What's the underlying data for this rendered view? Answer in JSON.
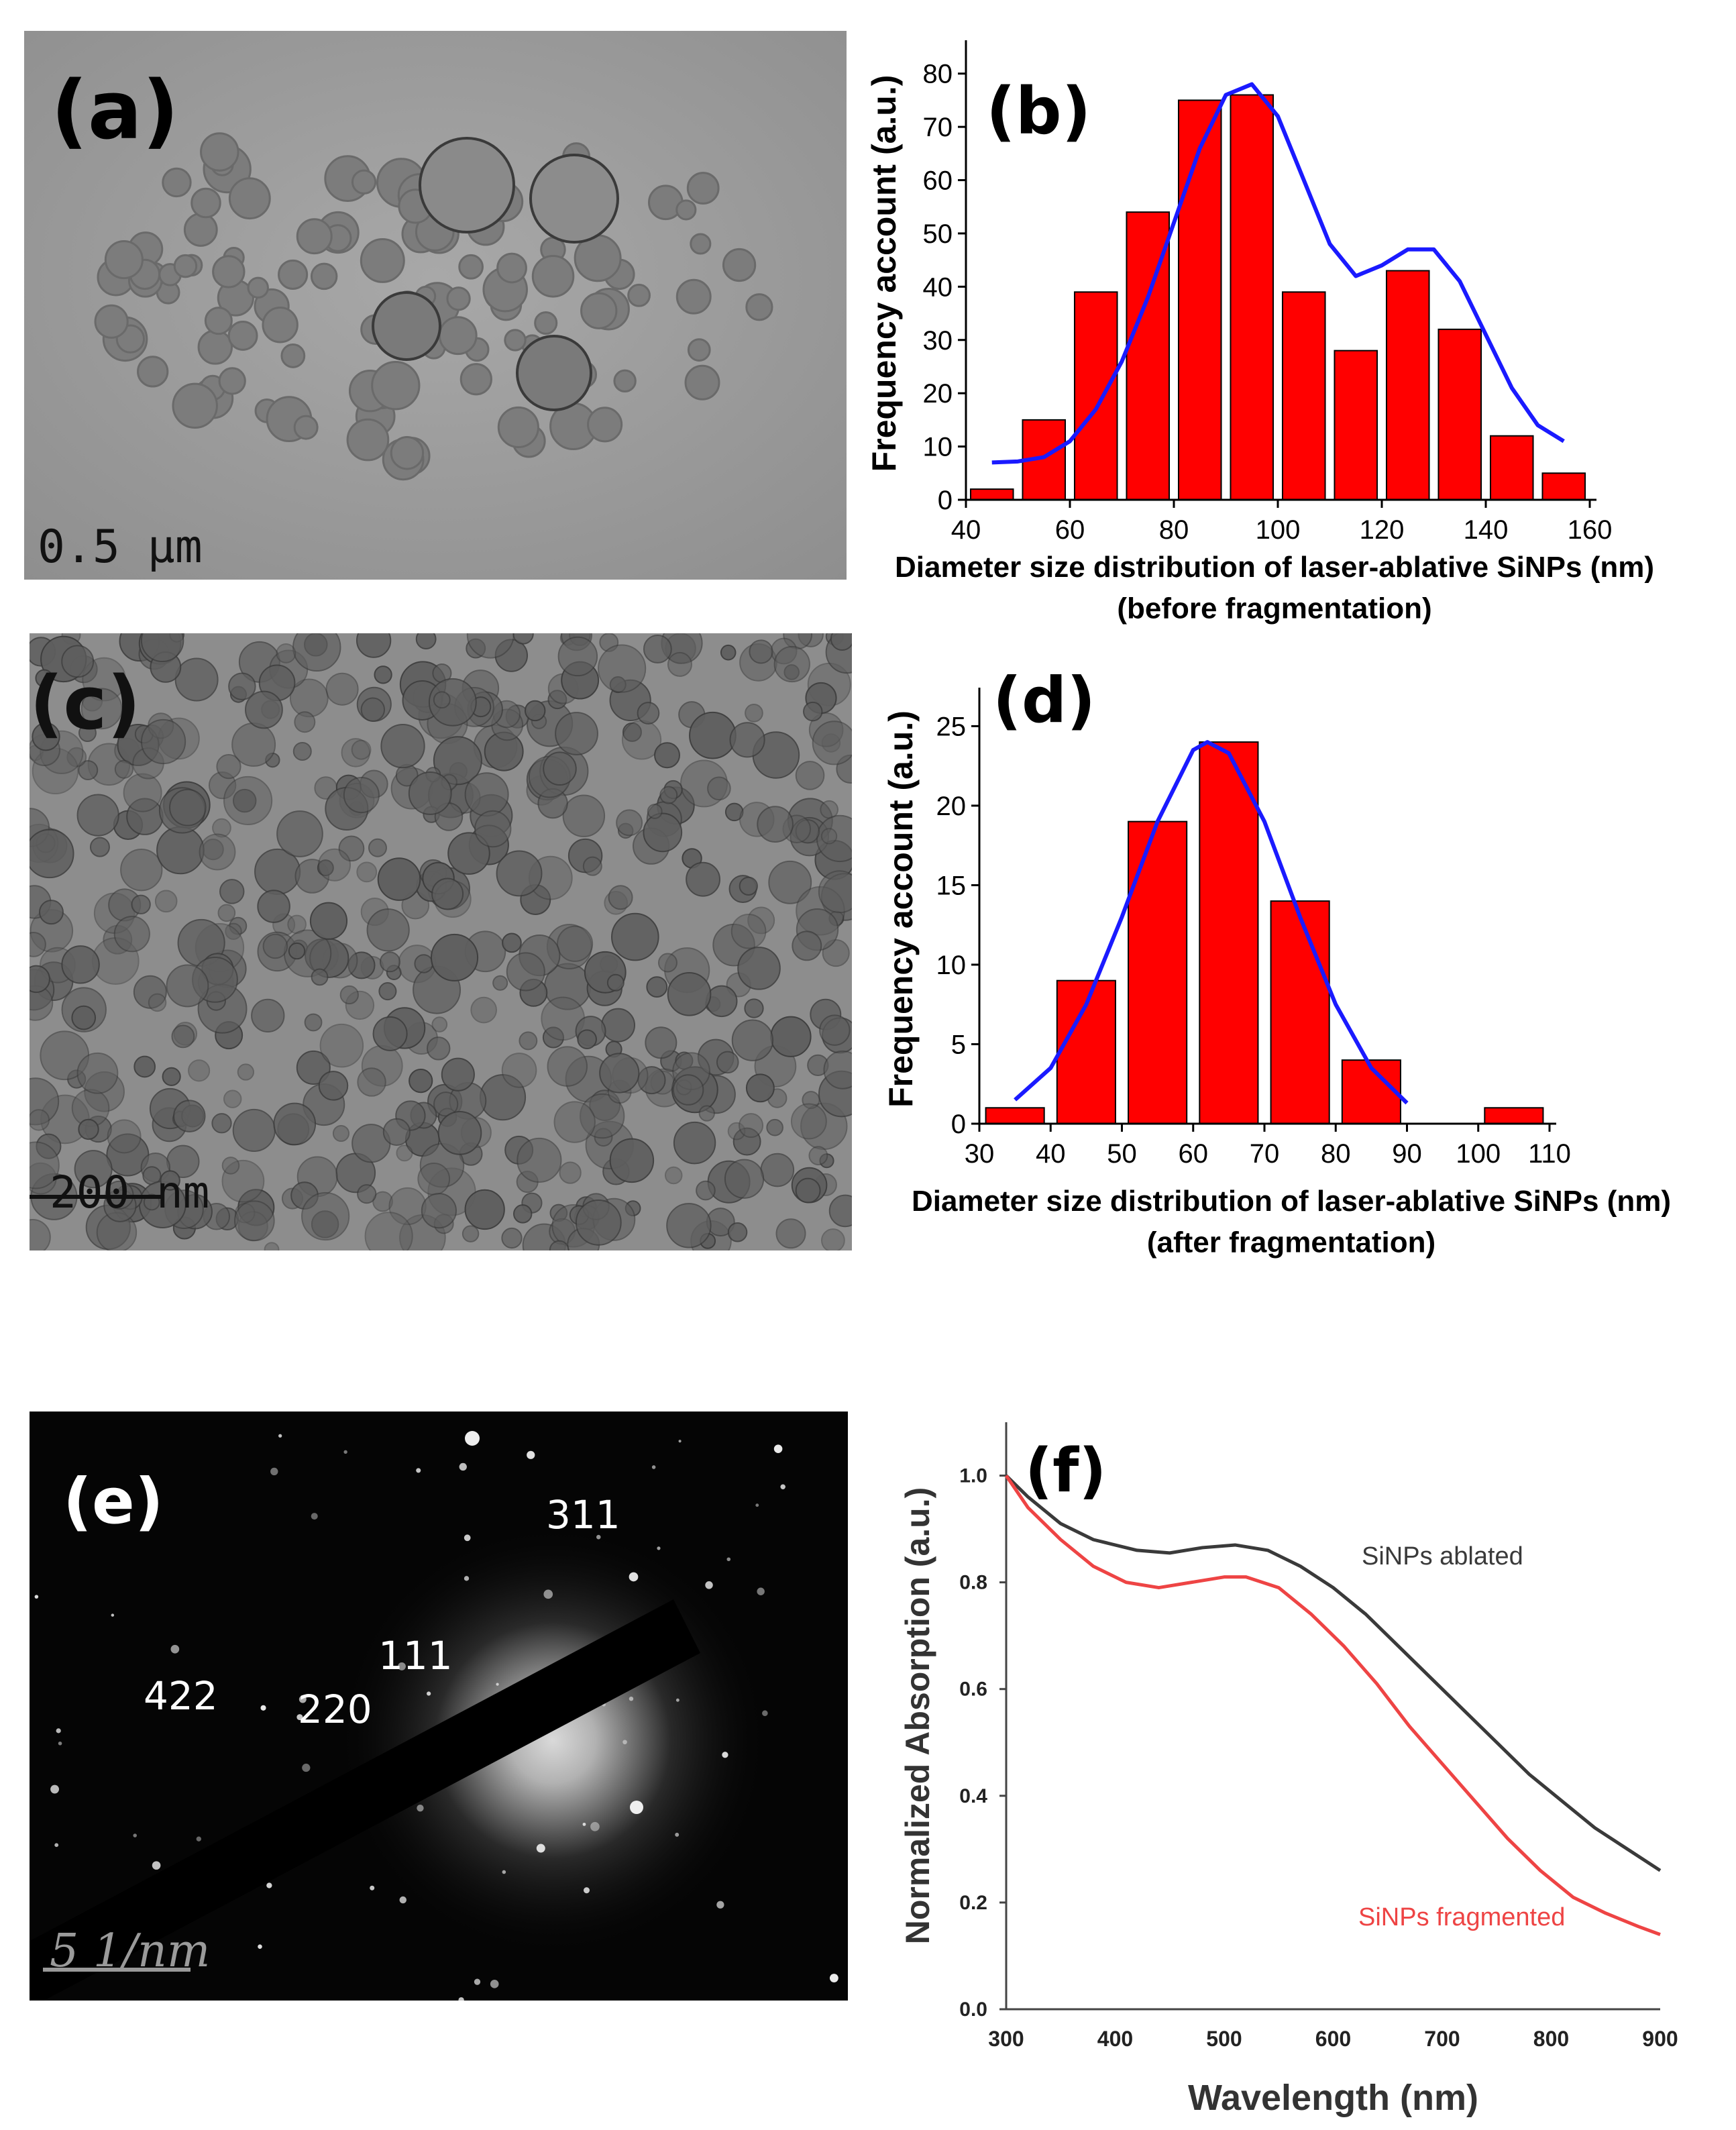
{
  "panels": {
    "a": {
      "label": "(a)",
      "scale_text": "0.5 µm"
    },
    "c": {
      "label": "(c)",
      "scale_text": "200 nm"
    },
    "e": {
      "label": "(e)",
      "scale_text": "5 1/nm",
      "rings": [
        "311",
        "111",
        "422",
        "220"
      ]
    }
  },
  "colors": {
    "bar": "#ff0000",
    "bar_edge": "#000000",
    "fit": "#1a1aff",
    "ablated": "#3a3a3a",
    "fragmented": "#ee4444"
  },
  "chart_data": [
    {
      "id": "b",
      "label": "(b)",
      "type": "bar",
      "categories": [
        45,
        55,
        65,
        75,
        85,
        95,
        105,
        115,
        125,
        135,
        145,
        155
      ],
      "values": [
        2,
        15,
        39,
        54,
        75,
        76,
        39,
        28,
        43,
        32,
        12,
        5
      ],
      "fit_curve": {
        "x": [
          45,
          50,
          55,
          60,
          65,
          70,
          75,
          80,
          85,
          90,
          95,
          100,
          105,
          110,
          115,
          120,
          125,
          130,
          135,
          140,
          145,
          150,
          155
        ],
        "y": [
          7,
          7.2,
          8,
          11,
          17,
          26,
          38,
          52,
          66,
          76,
          78,
          72,
          60,
          48,
          42,
          44,
          47,
          47,
          41,
          31,
          21,
          14,
          11
        ]
      },
      "xlim": [
        40,
        160
      ],
      "ylim": [
        0,
        85
      ],
      "xticks": [
        40,
        60,
        80,
        100,
        120,
        140,
        160
      ],
      "yticks": [
        0,
        10,
        20,
        30,
        40,
        50,
        60,
        70,
        80
      ],
      "ylabel": "Frequency account (a.u.)",
      "xlabel": "Diameter size distribution of laser-ablative SiNPs (nm)",
      "xlabel2": "(before fragmentation)"
    },
    {
      "id": "d",
      "label": "(d)",
      "type": "bar",
      "categories": [
        35,
        45,
        55,
        65,
        75,
        85,
        95,
        105
      ],
      "values": [
        1,
        9,
        19,
        24,
        14,
        4,
        0,
        1
      ],
      "fit_curve": {
        "x": [
          35,
          40,
          45,
          50,
          55,
          60,
          62,
          65,
          70,
          75,
          80,
          85,
          90
        ],
        "y": [
          1.5,
          3.5,
          7.5,
          13,
          19,
          23.5,
          24,
          23.3,
          19,
          13,
          7.5,
          3.5,
          1.3
        ]
      },
      "xlim": [
        30,
        110
      ],
      "ylim": [
        0,
        27
      ],
      "xticks": [
        30,
        40,
        50,
        60,
        70,
        80,
        90,
        100,
        110
      ],
      "yticks": [
        0,
        5,
        10,
        15,
        20,
        25
      ],
      "ylabel": "Frequency account (a.u.)",
      "xlabel": "Diameter size distribution  of laser-ablative  SiNPs (nm)",
      "xlabel2": "(after fragmentation)"
    },
    {
      "id": "f",
      "label": "(f)",
      "type": "line",
      "xlim": [
        300,
        900
      ],
      "ylim": [
        0,
        1.1
      ],
      "xticks": [
        300,
        400,
        500,
        600,
        700,
        800,
        900
      ],
      "yticks": [
        "0.0",
        "0.2",
        "0.4",
        "0.6",
        "0.8",
        "1.0"
      ],
      "xlabel": "Wavelength (nm)",
      "ylabel": "Normalized Absorption (a.u.)",
      "series": [
        {
          "name": "SiNPs ablated",
          "x": [
            300,
            320,
            350,
            380,
            420,
            450,
            480,
            510,
            540,
            570,
            600,
            630,
            660,
            690,
            720,
            750,
            780,
            810,
            840,
            870,
            900
          ],
          "y": [
            1.0,
            0.96,
            0.91,
            0.88,
            0.86,
            0.855,
            0.865,
            0.87,
            0.86,
            0.83,
            0.79,
            0.74,
            0.68,
            0.62,
            0.56,
            0.5,
            0.44,
            0.39,
            0.34,
            0.3,
            0.26
          ]
        },
        {
          "name": "SiNPs fragmented",
          "x": [
            300,
            320,
            350,
            380,
            410,
            440,
            470,
            500,
            520,
            550,
            580,
            610,
            640,
            670,
            700,
            730,
            760,
            790,
            820,
            850,
            880,
            900
          ],
          "y": [
            1.0,
            0.94,
            0.88,
            0.83,
            0.8,
            0.79,
            0.8,
            0.81,
            0.81,
            0.79,
            0.74,
            0.68,
            0.61,
            0.53,
            0.46,
            0.39,
            0.32,
            0.26,
            0.21,
            0.18,
            0.155,
            0.14
          ]
        }
      ]
    }
  ]
}
